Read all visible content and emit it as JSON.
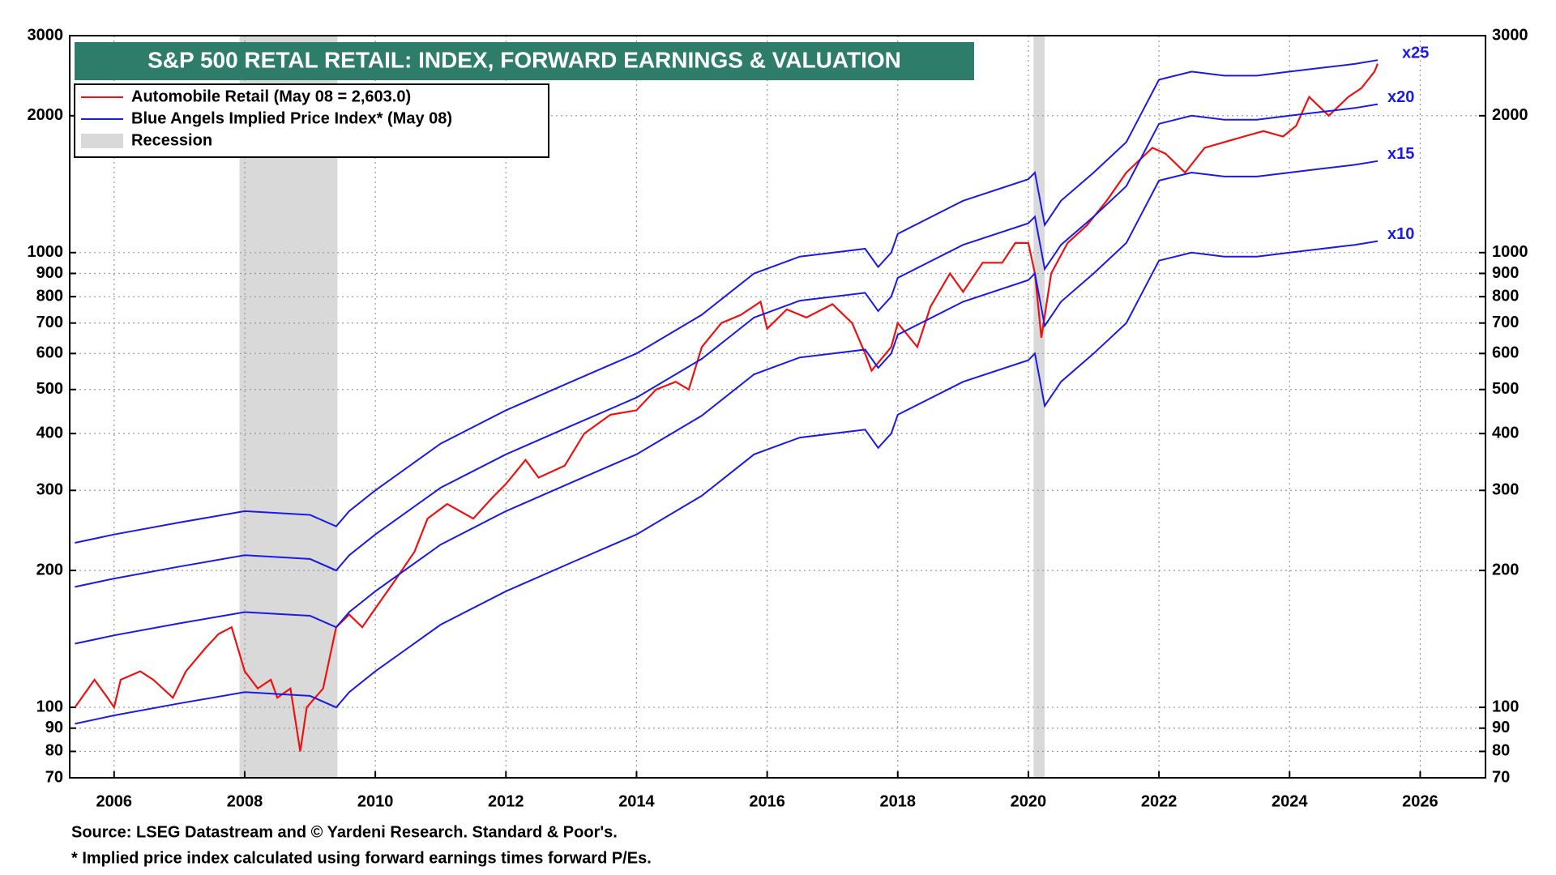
{
  "chart_data": {
    "type": "line",
    "title": "S&P 500 RETAL RETAIL: INDEX, FORWARD EARNINGS & VALUATION",
    "log_scale": true,
    "grid": true,
    "legend": {
      "position": "upper left",
      "entries": [
        {
          "label": "Blue Angels Implied Price Index* (May 08)",
          "color": "#1a1ae6"
        },
        {
          "label": "Recession",
          "color": "#d9d9d9"
        }
      ]
    },
    "recessions": [
      [
        2007.92,
        2009.42
      ],
      [
        2020.08,
        2020.25
      ]
    ],
    "recession_color": "#d9d9d9",
    "xlim": [
      2005.32,
      2027
    ],
    "xticks": [
      2006,
      2008,
      2010,
      2012,
      2014,
      2016,
      2018,
      2020,
      2022,
      2024,
      2026
    ],
    "ylim": [
      70,
      3000
    ],
    "yticks": [
      70,
      80,
      90,
      100,
      200,
      300,
      400,
      500,
      600,
      700,
      800,
      900,
      1000,
      2000,
      3000
    ],
    "series": [
      {
        "name": "Automobile Retail (May 08 = 2,603.0)",
        "color": "#ee1111",
        "x": [
          2005.4,
          2005.7,
          2005.9,
          2006.0,
          2006.1,
          2006.4,
          2006.6,
          2006.9,
          2007.1,
          2007.4,
          2007.6,
          2007.8,
          2008.0,
          2008.2,
          2008.4,
          2008.5,
          2008.7,
          2008.85,
          2008.95,
          2009.2,
          2009.4,
          2009.6,
          2009.8,
          2010.0,
          2010.3,
          2010.6,
          2010.8,
          2011.1,
          2011.5,
          2011.8,
          2012.0,
          2012.3,
          2012.5,
          2012.9,
          2013.2,
          2013.6,
          2014.0,
          2014.3,
          2014.6,
          2014.8,
          2015.0,
          2015.3,
          2015.6,
          2015.9,
          2016.0,
          2016.3,
          2016.6,
          2017.0,
          2017.3,
          2017.5,
          2017.6,
          2017.9,
          2018.0,
          2018.3,
          2018.5,
          2018.8,
          2019.0,
          2019.3,
          2019.6,
          2019.8,
          2020.0,
          2020.1,
          2020.2,
          2020.35,
          2020.6,
          2020.9,
          2021.2,
          2021.5,
          2021.9,
          2022.1,
          2022.4,
          2022.7,
          2023.0,
          2023.3,
          2023.6,
          2023.9,
          2024.1,
          2024.3,
          2024.6,
          2024.9,
          2025.1,
          2025.3,
          2025.35
        ],
        "values": [
          100,
          115,
          105,
          100,
          115,
          120,
          115,
          105,
          120,
          135,
          145,
          150,
          120,
          110,
          115,
          105,
          110,
          80,
          100,
          110,
          150,
          160,
          150,
          165,
          190,
          220,
          260,
          280,
          260,
          290,
          310,
          350,
          320,
          340,
          400,
          440,
          450,
          500,
          520,
          500,
          620,
          700,
          730,
          780,
          680,
          750,
          720,
          770,
          700,
          600,
          550,
          620,
          700,
          620,
          760,
          900,
          820,
          950,
          950,
          1050,
          1050,
          900,
          650,
          900,
          1050,
          1150,
          1300,
          1500,
          1700,
          1650,
          1500,
          1700,
          1750,
          1800,
          1850,
          1800,
          1900,
          2200,
          2000,
          2200,
          2300,
          2500,
          2603
        ]
      },
      {
        "name": "x25",
        "color": "#1a1ae6",
        "x": [
          2005.4,
          2006,
          2007,
          2008,
          2009,
          2009.4,
          2009.6,
          2010,
          2011,
          2012,
          2013,
          2014,
          2015,
          2015.8,
          2016.5,
          2017.5,
          2017.7,
          2017.9,
          2018,
          2019,
          2020.0,
          2020.1,
          2020.25,
          2020.5,
          2021,
          2021.5,
          2022,
          2022.5,
          2023,
          2023.5,
          2024,
          2024.5,
          2025,
          2025.35
        ],
        "values": [
          230,
          240,
          255,
          270,
          265,
          250,
          270,
          300,
          380,
          450,
          520,
          600,
          730,
          900,
          980,
          1020,
          930,
          1000,
          1100,
          1300,
          1450,
          1500,
          1150,
          1300,
          1500,
          1750,
          2400,
          2500,
          2450,
          2450,
          2500,
          2550,
          2600,
          2650
        ]
      },
      {
        "name": "x20",
        "color": "#1a1ae6",
        "x": [
          2005.4,
          2006,
          2007,
          2008,
          2009,
          2009.4,
          2009.6,
          2010,
          2011,
          2012,
          2013,
          2014,
          2015,
          2015.8,
          2016.5,
          2017.5,
          2017.7,
          2017.9,
          2018,
          2019,
          2020.0,
          2020.1,
          2020.25,
          2020.5,
          2021,
          2021.5,
          2022,
          2022.5,
          2023,
          2023.5,
          2024,
          2024.5,
          2025,
          2025.35
        ],
        "values": [
          184,
          192,
          204,
          216,
          212,
          200,
          216,
          240,
          304,
          360,
          416,
          480,
          584,
          720,
          784,
          816,
          744,
          800,
          880,
          1040,
          1160,
          1200,
          920,
          1040,
          1200,
          1400,
          1920,
          2000,
          1960,
          1960,
          2000,
          2040,
          2080,
          2120
        ]
      },
      {
        "name": "x15",
        "color": "#1a1ae6",
        "x": [
          2005.4,
          2006,
          2007,
          2008,
          2009,
          2009.4,
          2009.6,
          2010,
          2011,
          2012,
          2013,
          2014,
          2015,
          2015.8,
          2016.5,
          2017.5,
          2017.7,
          2017.9,
          2018,
          2019,
          2020.0,
          2020.1,
          2020.25,
          2020.5,
          2021,
          2021.5,
          2022,
          2022.5,
          2023,
          2023.5,
          2024,
          2024.5,
          2025,
          2025.35
        ],
        "values": [
          138,
          144,
          153,
          162,
          159,
          150,
          162,
          180,
          228,
          270,
          312,
          360,
          438,
          540,
          588,
          612,
          558,
          600,
          660,
          780,
          870,
          900,
          690,
          780,
          900,
          1050,
          1440,
          1500,
          1470,
          1470,
          1500,
          1530,
          1560,
          1590
        ]
      },
      {
        "name": "x10",
        "color": "#1a1ae6",
        "x": [
          2005.4,
          2006,
          2007,
          2008,
          2009,
          2009.4,
          2009.6,
          2010,
          2011,
          2012,
          2013,
          2014,
          2015,
          2015.8,
          2016.5,
          2017.5,
          2017.7,
          2017.9,
          2018,
          2019,
          2020.0,
          2020.1,
          2020.25,
          2020.5,
          2021,
          2021.5,
          2022,
          2022.5,
          2023,
          2023.5,
          2024,
          2024.5,
          2025,
          2025.35
        ],
        "values": [
          92,
          96,
          102,
          108,
          106,
          100,
          108,
          120,
          152,
          180,
          208,
          240,
          292,
          360,
          392,
          408,
          372,
          400,
          440,
          520,
          580,
          600,
          460,
          520,
          600,
          700,
          960,
          1000,
          980,
          980,
          1000,
          1020,
          1040,
          1060
        ]
      }
    ],
    "footnotes": [
      "Source: LSEG Datastream and © Yardeni Research. Standard & Poor's.",
      "* Implied price index calculated using forward earnings times forward P/Es."
    ]
  }
}
